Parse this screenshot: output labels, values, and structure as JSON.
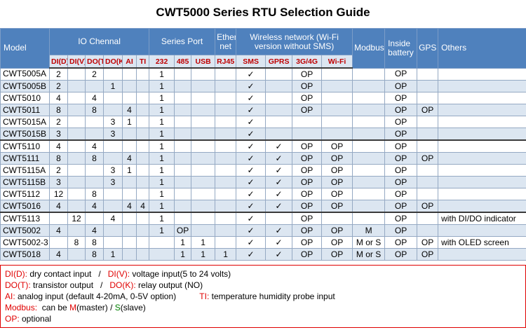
{
  "title": "CWT5000 Series RTU Selection Guide",
  "colors": {
    "header_bg": "#4f81bd",
    "subheader_text": "#c00000",
    "band_bg": "#dce6f1",
    "grid_border": "#95a9c3",
    "legend_red": "#e00000",
    "legend_green": "#008000"
  },
  "table": {
    "header_groups": [
      "Model",
      "IO Chennal",
      "Series Port",
      "Ether net",
      "Wireless network (Wi-Fi version without SMS)",
      "Modbus",
      "Inside battery",
      "GPS",
      "Others"
    ],
    "sub_headers": [
      "DI(D)",
      "DI(V)",
      "DO(T)",
      "DO(K)",
      "AI",
      "TI",
      "232",
      "485",
      "USB",
      "RJ45",
      "SMS",
      "GPRS",
      "3G/4G",
      "Wi-Fi"
    ],
    "extra_columns": [
      "Modbus",
      "Battery",
      "GPS",
      "Others"
    ],
    "section_breaks": [
      5,
      11
    ],
    "rows": [
      {
        "model": "CWT5005A",
        "cells": [
          "2",
          "",
          "2",
          "",
          "",
          "",
          "1",
          "",
          "",
          "",
          "✓",
          "",
          "OP",
          "",
          "",
          "OP",
          "",
          ""
        ]
      },
      {
        "model": "CWT5005B",
        "cells": [
          "2",
          "",
          "",
          "1",
          "",
          "",
          "1",
          "",
          "",
          "",
          "✓",
          "",
          "OP",
          "",
          "",
          "OP",
          "",
          ""
        ]
      },
      {
        "model": "CWT5010",
        "cells": [
          "4",
          "",
          "4",
          "",
          "",
          "",
          "1",
          "",
          "",
          "",
          "✓",
          "",
          "OP",
          "",
          "",
          "OP",
          "",
          ""
        ]
      },
      {
        "model": "CWT5011",
        "cells": [
          "8",
          "",
          "8",
          "",
          "4",
          "",
          "1",
          "",
          "",
          "",
          "✓",
          "",
          "OP",
          "",
          "",
          "OP",
          "OP",
          ""
        ]
      },
      {
        "model": "CWT5015A",
        "cells": [
          "2",
          "",
          "",
          "3",
          "1",
          "",
          "1",
          "",
          "",
          "",
          "✓",
          "",
          "",
          "",
          "",
          "OP",
          "",
          ""
        ]
      },
      {
        "model": "CWT5015B",
        "cells": [
          "3",
          "",
          "",
          "3",
          "",
          "",
          "1",
          "",
          "",
          "",
          "✓",
          "",
          "",
          "",
          "",
          "OP",
          "",
          ""
        ]
      },
      {
        "model": "CWT5110",
        "cells": [
          "4",
          "",
          "4",
          "",
          "",
          "",
          "1",
          "",
          "",
          "",
          "✓",
          "✓",
          "OP",
          "OP",
          "",
          "OP",
          "",
          ""
        ]
      },
      {
        "model": "CWT5111",
        "cells": [
          "8",
          "",
          "8",
          "",
          "4",
          "",
          "1",
          "",
          "",
          "",
          "✓",
          "✓",
          "OP",
          "OP",
          "",
          "OP",
          "OP",
          ""
        ]
      },
      {
        "model": "CWT5115A",
        "cells": [
          "2",
          "",
          "",
          "3",
          "1",
          "",
          "1",
          "",
          "",
          "",
          "✓",
          "✓",
          "OP",
          "OP",
          "",
          "OP",
          "",
          ""
        ]
      },
      {
        "model": "CWT5115B",
        "cells": [
          "3",
          "",
          "",
          "3",
          "",
          "",
          "1",
          "",
          "",
          "",
          "✓",
          "✓",
          "OP",
          "OP",
          "",
          "OP",
          "",
          ""
        ]
      },
      {
        "model": "CWT5112",
        "cells": [
          "12",
          "",
          "8",
          "",
          "",
          "",
          "1",
          "",
          "",
          "",
          "✓",
          "✓",
          "OP",
          "OP",
          "",
          "OP",
          "",
          ""
        ]
      },
      {
        "model": "CWT5016",
        "cells": [
          "4",
          "",
          "4",
          "",
          "4",
          "4",
          "1",
          "",
          "",
          "",
          "✓",
          "✓",
          "OP",
          "OP",
          "",
          "OP",
          "OP",
          ""
        ]
      },
      {
        "model": "CWT5113",
        "cells": [
          "",
          "12",
          "",
          "4",
          "",
          "",
          "1",
          "",
          "",
          "",
          "✓",
          "",
          "OP",
          "",
          "",
          "OP",
          "",
          "with DI/DO indicator"
        ]
      },
      {
        "model": "CWT5002",
        "cells": [
          "4",
          "",
          "4",
          "",
          "",
          "",
          "1",
          "OP",
          "",
          "",
          "✓",
          "✓",
          "OP",
          "OP",
          "M",
          "OP",
          "",
          ""
        ]
      },
      {
        "model": "CWT5002-3",
        "cells": [
          "",
          "8",
          "8",
          "",
          "",
          "",
          "",
          "1",
          "1",
          "",
          "✓",
          "✓",
          "OP",
          "OP",
          "M or S",
          "OP",
          "OP",
          "with OLED screen"
        ]
      },
      {
        "model": "CWT5018",
        "cells": [
          "4",
          "",
          "8",
          "1",
          "",
          "",
          "",
          "1",
          "1",
          "1",
          "✓",
          "✓",
          "OP",
          "OP",
          "M or S",
          "OP",
          "OP",
          ""
        ]
      }
    ]
  },
  "legend": {
    "lines": [
      [
        {
          "t": "DI(D):",
          "c": "red"
        },
        {
          "t": " dry contact input   /   ",
          "c": "black"
        },
        {
          "t": "DI(V):",
          "c": "red"
        },
        {
          "t": " voltage input(5 to 24 volts)",
          "c": "black"
        }
      ],
      [
        {
          "t": "DO(T):",
          "c": "red"
        },
        {
          "t": " transistor output   /   ",
          "c": "black"
        },
        {
          "t": "DO(K):",
          "c": "red"
        },
        {
          "t": " relay output (NO)",
          "c": "black"
        }
      ],
      [
        {
          "t": "AI:",
          "c": "red"
        },
        {
          "t": " analog input (default 4-20mA, 0-5V option)          ",
          "c": "black"
        },
        {
          "t": "TI:",
          "c": "red"
        },
        {
          "t": " temperature humidity probe input",
          "c": "black"
        }
      ],
      [
        {
          "t": "Modbus:",
          "c": "red"
        },
        {
          "t": "  can be ",
          "c": "black"
        },
        {
          "t": "M",
          "c": "red"
        },
        {
          "t": "(master) / ",
          "c": "black"
        },
        {
          "t": "S",
          "c": "green"
        },
        {
          "t": "(slave)",
          "c": "black"
        }
      ],
      [
        {
          "t": "OP:",
          "c": "red"
        },
        {
          "t": " optional",
          "c": "black"
        }
      ]
    ]
  }
}
